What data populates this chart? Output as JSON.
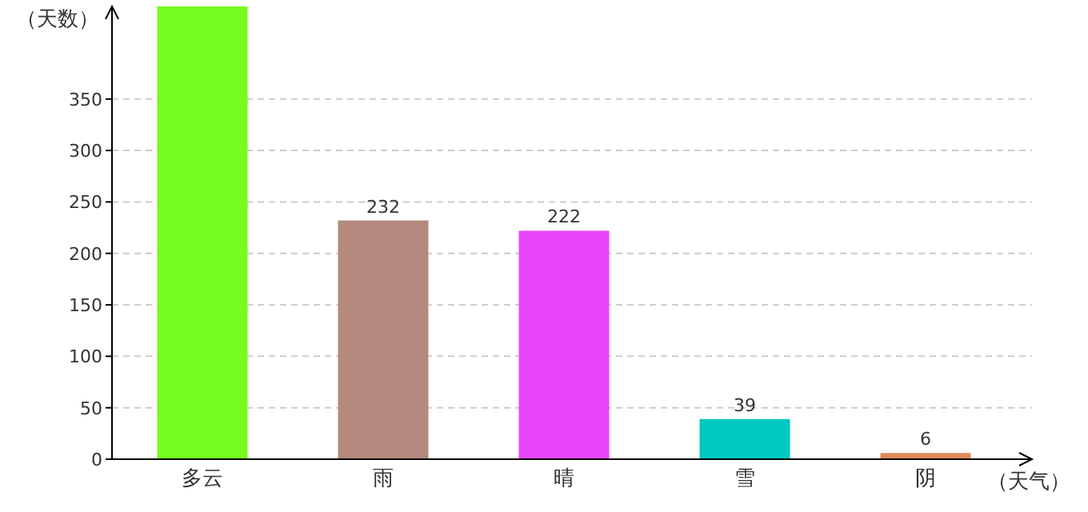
{
  "chart_data": {
    "type": "bar",
    "xlabel": "（天气）",
    "ylabel": "（天数）",
    "categories": [
      "多云",
      "雨",
      "晴",
      "雪",
      "阴"
    ],
    "values": [
      440,
      232,
      222,
      39,
      6
    ],
    "colors": [
      "#77fc22",
      "#b38a7d",
      "#e845fa",
      "#00c8c0",
      "#e0885a"
    ],
    "value_labels": [
      null,
      "232",
      "222",
      "39",
      "6"
    ],
    "ylim": [
      0,
      440
    ],
    "yticks": [
      0,
      50,
      100,
      150,
      200,
      250,
      300,
      350
    ],
    "grid": "y"
  }
}
